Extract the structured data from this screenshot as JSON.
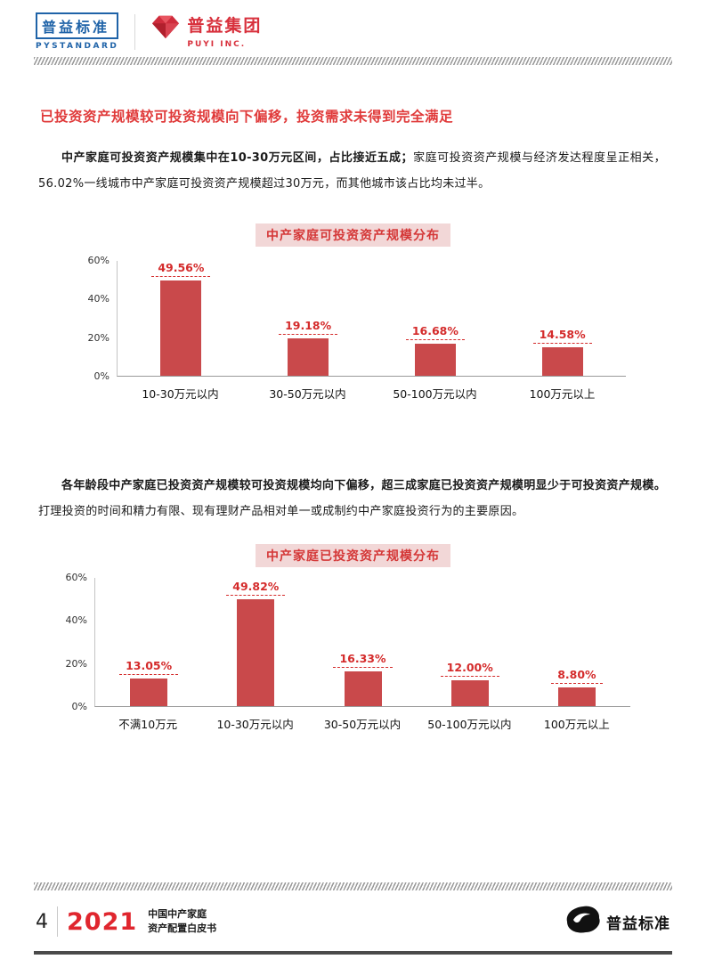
{
  "header": {
    "logo_pystandard": {
      "title": "普益标准",
      "subtitle": "PYSTANDARD"
    },
    "logo_puyi": {
      "title": "普益集团",
      "subtitle": "PUYI INC."
    }
  },
  "article": {
    "heading": "已投资资产规模较可投资规模向下偏移，投资需求未得到完全满足",
    "para1_lead": "中产家庭可投资资产规模集中在10-30万元区间，占比接近五成；",
    "para1_rest": "家庭可投资资产规模与经济发达程度呈正相关，56.02%一线城市中产家庭可投资资产规模超过30万元，而其他城市该占比均未过半。",
    "para2_lead": "各年龄段中产家庭已投资资产规模较可投资规模均向下偏移，超三成家庭已投资资产规模明显少于可投资资产规模。",
    "para2_rest": "打理投资的时间和精力有限、现有理财产品相对单一或成制约中产家庭投资行为的主要原因。"
  },
  "chart_data": [
    {
      "type": "bar",
      "title": "中产家庭可投资资产规模分布",
      "categories": [
        "10-30万元以内",
        "30-50万元以内",
        "50-100万元以内",
        "100万元以上"
      ],
      "values": [
        49.56,
        19.18,
        16.68,
        14.58
      ],
      "labels": [
        "49.56%",
        "19.18%",
        "16.68%",
        "14.58%"
      ],
      "ylim": [
        0,
        60
      ],
      "yticks": [
        0,
        20,
        40,
        60
      ],
      "ytick_suffix": "%",
      "grid": false,
      "legend": false,
      "bar_color": "#c9494b",
      "label_color": "#d42b2b"
    },
    {
      "type": "bar",
      "title": "中产家庭已投资资产规模分布",
      "categories": [
        "不满10万元",
        "10-30万元以内",
        "30-50万元以内",
        "50-100万元以内",
        "100万元以上"
      ],
      "values": [
        13.05,
        49.82,
        16.33,
        12.0,
        8.8
      ],
      "labels": [
        "13.05%",
        "49.82%",
        "16.33%",
        "12.00%",
        "8.80%"
      ],
      "ylim": [
        0,
        60
      ],
      "yticks": [
        0,
        20,
        40,
        60
      ],
      "ytick_suffix": "%",
      "grid": false,
      "legend": false,
      "bar_color": "#c9494b",
      "label_color": "#d42b2b"
    }
  ],
  "footer": {
    "page_number": "4",
    "year": "2021",
    "doc_line1": "中国中产家庭",
    "doc_line2": "资产配置白皮书",
    "brand": "普益标准"
  },
  "colors": {
    "heading_red": "#e03a3a",
    "bar_red": "#c9494b",
    "chart_title_bg": "#f2d7d7",
    "logo_blue": "#1f63a8",
    "logo_red": "#d8303c"
  }
}
